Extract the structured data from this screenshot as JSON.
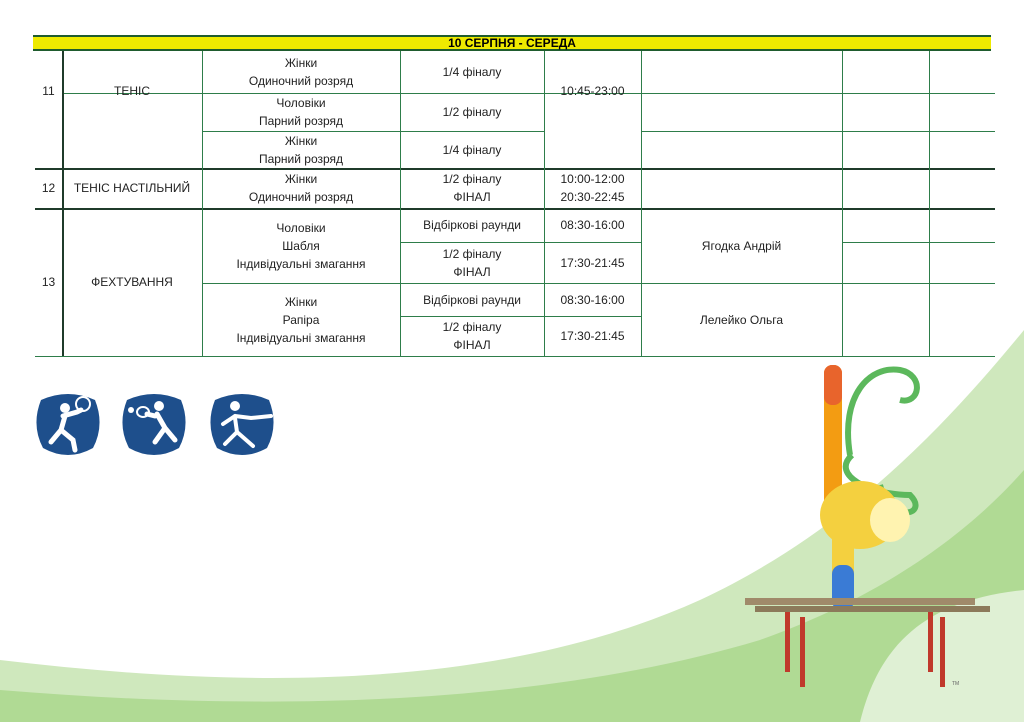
{
  "header": {
    "date": "10 СЕРПНЯ - СЕРЕДА"
  },
  "rows": {
    "r11": {
      "num": "11",
      "sport": "ТЕНІС",
      "events": [
        {
          "category": "Жінки",
          "discipline": "Одиночний розряд",
          "stage": "1/4 фіналу"
        },
        {
          "category": "Чоловіки",
          "discipline": "Парний розряд",
          "stage": "1/2 фіналу"
        },
        {
          "category": "Жінки",
          "discipline": "Парний розряд",
          "stage": "1/4 фіналу"
        }
      ],
      "time": "10:45-23:00"
    },
    "r12": {
      "num": "12",
      "sport": "ТЕНІС НАСТІЛЬНИЙ",
      "category": "Жінки",
      "discipline": "Одиночний розряд",
      "stage1": "1/2 фіналу",
      "stage2": "ФІНАЛ",
      "time1": "10:00-12:00",
      "time2": "20:30-22:45"
    },
    "r13": {
      "num": "13",
      "sport": "ФЕХТУВАННЯ",
      "men": {
        "category": "Чоловіки",
        "weapon": "Шабля",
        "type": "Індивідуальні змагання",
        "stage_a": "Відбіркові раунди",
        "time_a": "08:30-16:00",
        "stage_b1": "1/2 фіналу",
        "stage_b2": "ФІНАЛ",
        "time_b": "17:30-21:45",
        "athlete": "Ягодка Андрій"
      },
      "women": {
        "category": "Жінки",
        "weapon": "Рапіра",
        "type": "Індивідуальні змагання",
        "stage_a": "Відбіркові раунди",
        "time_a": "08:30-16:00",
        "stage_b1": "1/2 фіналу",
        "stage_b2": "ФІНАЛ",
        "time_b": "17:30-21:45",
        "athlete": "Лелейко Ольга"
      }
    }
  },
  "icons": [
    "tennis-pictogram",
    "table-tennis-pictogram",
    "fencing-pictogram"
  ],
  "colors": {
    "header_bg": "#eeea00",
    "grid": "#2e7d4a",
    "picto": "#1e4f8c",
    "swoosh": "#a8d68a"
  },
  "mascot": {
    "tm": "TM"
  }
}
